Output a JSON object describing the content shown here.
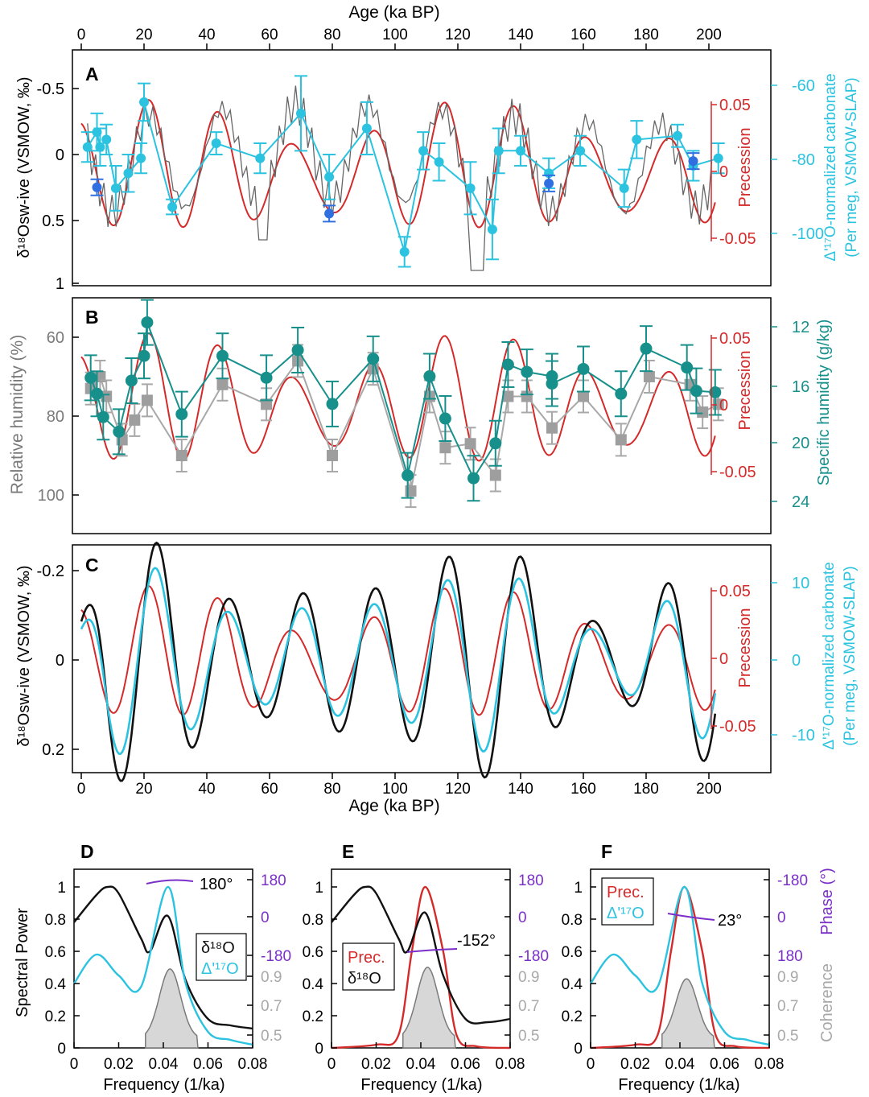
{
  "colors": {
    "black": "#111111",
    "cyan": "#2bc3e0",
    "red": "#d42a2a",
    "gray": "#7a7a7a",
    "lightgray": "#a8a8a8",
    "teal": "#17908c",
    "blue": "#2f6fe0",
    "purple": "#7b2fc9",
    "fill": "#d7d7d7"
  },
  "labels": {
    "top_axis_title": "Age (ka BP)",
    "bottom_axis_title": "Age (ka BP)",
    "panel_A": "A",
    "panel_B": "B",
    "panel_C": "C",
    "panel_D": "D",
    "panel_E": "E",
    "panel_F": "F",
    "A_left": "δ¹⁸Osw-ive (VSMOW, ‰)",
    "A_right_outer": "Δ'¹⁷O-normalized carbonate",
    "A_right_outer2": "(Per meg, VSMOW-SLAP)",
    "A_prec": "Precession",
    "B_left": "Relative humidity (%)",
    "B_right_outer": "Specific humidity (g/kg)",
    "B_prec": "Precession",
    "C_left": "δ¹⁸Osw-ive (VSMOW, ‰)",
    "C_right_outer": "Δ'¹⁷O-normalized carbonate",
    "C_right_outer2": "(Per meg, VSMOW-SLAP)",
    "C_prec": "Precession",
    "spec_ylabel": "Spectral Power",
    "spec_xlabel": "Frequency (1/ka)",
    "phase_label": "Phase (°)",
    "coh_label": "Coherence",
    "D_phase": "180°",
    "E_phase": "-152°",
    "F_phase": "23°",
    "D_leg1": "δ¹⁸O",
    "D_leg2": "Δ'¹⁷O",
    "E_leg1": "Prec.",
    "E_leg2": "δ¹⁸O",
    "F_leg1": "Prec.",
    "F_leg2": "Δ'¹⁷O"
  },
  "ticks": {
    "age": [
      "0",
      "20",
      "40",
      "60",
      "80",
      "100",
      "120",
      "140",
      "160",
      "180",
      "200"
    ],
    "A_left": [
      "-0.5",
      "0",
      "0.5",
      "1"
    ],
    "A_prec": [
      "0.05",
      "0",
      "-0.05"
    ],
    "A_right": [
      "-60",
      "-80",
      "-100"
    ],
    "B_left": [
      "60",
      "80",
      "100"
    ],
    "B_prec": [
      "0.05",
      "0",
      "-0.05"
    ],
    "B_right": [
      "12",
      "16",
      "20",
      "24"
    ],
    "C_left": [
      "-0.2",
      "0",
      "0.2"
    ],
    "C_prec": [
      "0.05",
      "0",
      "-0.05"
    ],
    "C_right": [
      "10",
      "0",
      "-10"
    ],
    "freq": [
      "0",
      "0.02",
      "0.04",
      "0.06",
      "0.08"
    ],
    "power": [
      "0",
      "0.2",
      "0.4",
      "0.6",
      "0.8",
      "1"
    ],
    "phase": [
      "180",
      "0",
      "-180"
    ],
    "phaseF": [
      "-180",
      "0",
      "180"
    ],
    "coh": [
      "0.9",
      "0.7",
      "0.5"
    ]
  },
  "chart_data": [
    {
      "type": "line",
      "panel": "A",
      "xlabel": "Age (ka BP)",
      "ylabel": "δ¹⁸Osw-ive (VSMOW, ‰)",
      "xlim": [
        0,
        205
      ],
      "ylim": [
        1,
        -0.8
      ],
      "series": [
        {
          "name": "Δ'¹⁷O-normalized carbonate (Per meg, VSMOW-SLAP)",
          "x": [
            2,
            5,
            6,
            8,
            11,
            15,
            19,
            20,
            29,
            43,
            57,
            70,
            79,
            91,
            103,
            109,
            114,
            124,
            131,
            133,
            140,
            149,
            159,
            173,
            177,
            190,
            195,
            203
          ],
          "y": [
            -78,
            -74,
            -78,
            -76,
            -89,
            -85,
            -81,
            -66,
            -94,
            -77,
            -81,
            -69,
            -86,
            -73,
            -106,
            -79,
            -82,
            -89,
            -100,
            -79,
            -79,
            -85,
            -79,
            -89,
            -76,
            -75,
            -83,
            -81
          ],
          "err": [
            4,
            5,
            5,
            4,
            6,
            5,
            4,
            5,
            2,
            3,
            4,
            10,
            6,
            7,
            4,
            5,
            5,
            7,
            8,
            6,
            4,
            4,
            4,
            5,
            5,
            3,
            4,
            4
          ]
        },
        {
          "name": "δ¹⁸Osw-ive (blue points)",
          "x": [
            5,
            79,
            149,
            195
          ],
          "y": [
            0.25,
            0.45,
            0.22,
            0.05
          ]
        }
      ],
      "right_axis": {
        "label": "Δ'¹⁷O-normalized carbonate (Per meg, VSMOW-SLAP)",
        "ticks": [
          -60,
          -80,
          -100
        ]
      },
      "precession_axis": {
        "label": "Precession",
        "ticks": [
          0.05,
          0,
          -0.05
        ]
      }
    },
    {
      "type": "line",
      "panel": "B",
      "xlabel": "Age (ka BP)",
      "ylabel": "Relative humidity (%)",
      "xlim": [
        0,
        205
      ],
      "ylim": [
        52,
        108
      ],
      "series": [
        {
          "name": "Relative humidity (%)",
          "x": [
            3,
            6,
            8,
            13,
            17,
            21,
            32,
            45,
            59,
            69,
            80,
            93,
            105,
            111,
            116,
            124,
            132,
            136,
            142,
            150,
            160,
            172,
            181,
            194,
            198,
            203
          ],
          "y": [
            73,
            70,
            75,
            86,
            81,
            76,
            90,
            72,
            77,
            66,
            90,
            68,
            99,
            75,
            88,
            87,
            95,
            75,
            75,
            83,
            75,
            86,
            70,
            72,
            79,
            77
          ]
        },
        {
          "name": "Specific humidity (g/kg)",
          "x": [
            3,
            5,
            7,
            12,
            16,
            20,
            21,
            32,
            45,
            59,
            69,
            80,
            93,
            104,
            111,
            116,
            125,
            132,
            136,
            142,
            150,
            150,
            160,
            172,
            180,
            193,
            196,
            202
          ],
          "y": [
            15.5,
            16.6,
            18.2,
            19.2,
            15.7,
            14.0,
            11.7,
            18.0,
            14.0,
            15.5,
            13.6,
            17.3,
            14.2,
            22.2,
            15.4,
            18.3,
            22.4,
            20.0,
            14.6,
            15.1,
            15.4,
            15.9,
            14.9,
            16.6,
            13.5,
            14.8,
            16.4,
            16.5
          ]
        }
      ],
      "right_axis": {
        "label": "Specific humidity (g/kg)",
        "ticks": [
          12,
          16,
          20,
          24
        ]
      },
      "precession_axis": {
        "label": "Precession",
        "ticks": [
          0.05,
          0,
          -0.05
        ]
      }
    },
    {
      "type": "line",
      "panel": "C",
      "xlabel": "Age (ka BP)",
      "ylabel": "δ¹⁸Osw-ive (VSMOW, ‰)",
      "xlim": [
        0,
        205
      ],
      "ylim": [
        0.25,
        -0.25
      ],
      "series": [
        {
          "name": "δ¹⁸Osw-ive filtered"
        },
        {
          "name": "Δ'¹⁷O filtered"
        },
        {
          "name": "Precession"
        }
      ],
      "right_axis": {
        "label": "Δ'¹⁷O-normalized carbonate (Per meg, VSMOW-SLAP)",
        "ticks": [
          10,
          0,
          -10
        ]
      },
      "precession_axis": {
        "label": "Precession",
        "ticks": [
          0.05,
          0,
          -0.05
        ]
      }
    },
    {
      "type": "line",
      "panel": "D",
      "xlabel": "Frequency (1/ka)",
      "ylabel": "Spectral Power",
      "xlim": [
        0,
        0.08
      ],
      "ylim": [
        0,
        1.05
      ],
      "series": [
        {
          "name": "δ¹⁸O",
          "x": [
            0,
            0.01,
            0.015,
            0.02,
            0.03,
            0.034,
            0.042,
            0.05,
            0.06,
            0.07,
            0.08
          ],
          "y": [
            0.78,
            0.95,
            1.0,
            0.96,
            0.68,
            0.6,
            0.82,
            0.42,
            0.18,
            0.14,
            0.12
          ]
        },
        {
          "name": "Δ'¹⁷O",
          "x": [
            0,
            0.01,
            0.02,
            0.03,
            0.042,
            0.05,
            0.06,
            0.07,
            0.08
          ],
          "y": [
            0.4,
            0.58,
            0.45,
            0.38,
            1.0,
            0.4,
            0.1,
            0.05,
            0.02
          ]
        }
      ],
      "phase": "180°",
      "coherence_peak": 0.92
    },
    {
      "type": "line",
      "panel": "E",
      "xlabel": "Frequency (1/ka)",
      "ylabel": "Spectral Power",
      "xlim": [
        0,
        0.08
      ],
      "ylim": [
        0,
        1.05
      ],
      "series": [
        {
          "name": "Prec.",
          "x": [
            0,
            0.02,
            0.03,
            0.036,
            0.042,
            0.05,
            0.056,
            0.065,
            0.08
          ],
          "y": [
            0,
            0.02,
            0.08,
            0.6,
            1.0,
            0.6,
            0.08,
            0.01,
            0
          ]
        },
        {
          "name": "δ¹⁸O",
          "x": [
            0,
            0.01,
            0.015,
            0.02,
            0.03,
            0.034,
            0.042,
            0.05,
            0.06,
            0.07,
            0.08
          ],
          "y": [
            0.78,
            0.95,
            1.0,
            0.96,
            0.68,
            0.6,
            0.84,
            0.45,
            0.18,
            0.16,
            0.18
          ]
        }
      ],
      "phase": "-152°",
      "coherence_peak": 0.93
    },
    {
      "type": "line",
      "panel": "F",
      "xlabel": "Frequency (1/ka)",
      "ylabel": "Spectral Power",
      "xlim": [
        0,
        0.08
      ],
      "ylim": [
        0,
        1.05
      ],
      "series": [
        {
          "name": "Prec.",
          "x": [
            0,
            0.02,
            0.03,
            0.036,
            0.042,
            0.05,
            0.056,
            0.065,
            0.08
          ],
          "y": [
            0,
            0.02,
            0.08,
            0.6,
            1.0,
            0.6,
            0.08,
            0.01,
            0
          ]
        },
        {
          "name": "Δ'¹⁷O",
          "x": [
            0,
            0.01,
            0.02,
            0.03,
            0.042,
            0.05,
            0.06,
            0.07,
            0.08
          ],
          "y": [
            0.4,
            0.58,
            0.45,
            0.38,
            1.0,
            0.4,
            0.1,
            0.05,
            0.02
          ]
        }
      ],
      "phase": "23°",
      "coherence_peak": 0.86
    }
  ]
}
